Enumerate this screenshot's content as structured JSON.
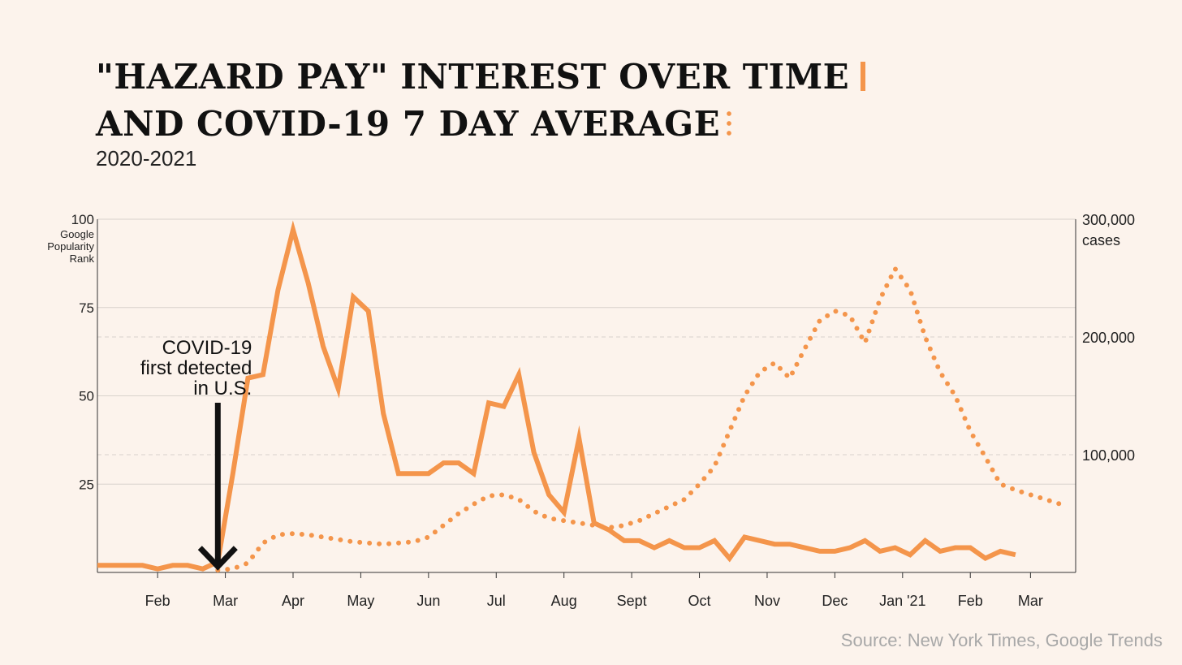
{
  "title_line1": "\"Hazard Pay\" Interest Over Time",
  "title_line2": "and COVID-19 7 Day Average",
  "subtitle": "2020-2021",
  "source": "Source: New York Times, Google Trends",
  "colors": {
    "accent": "#f4954b",
    "background": "#fcf3ec",
    "text": "#111111",
    "grid": "#d8d2cc",
    "source": "#a8a8a8"
  },
  "chart_data": {
    "type": "line",
    "x_unit": "week",
    "x": [
      0,
      1,
      2,
      3,
      4,
      5,
      6,
      7,
      8,
      9,
      10,
      11,
      12,
      13,
      14,
      15,
      16,
      17,
      18,
      19,
      20,
      21,
      22,
      23,
      24,
      25,
      26,
      27,
      28,
      29,
      30,
      31,
      32,
      33,
      34,
      35,
      36,
      37,
      38,
      39,
      40,
      41,
      42,
      43,
      44,
      45,
      46,
      47,
      48,
      49,
      50,
      51,
      52,
      53,
      54,
      55,
      56,
      57,
      58,
      59,
      60,
      61,
      62,
      63,
      64
    ],
    "x_ticks": [
      {
        "label": "Feb",
        "x": 4
      },
      {
        "label": "Mar",
        "x": 8.5
      },
      {
        "label": "Apr",
        "x": 13
      },
      {
        "label": "May",
        "x": 17.5
      },
      {
        "label": "Jun",
        "x": 22
      },
      {
        "label": "Jul",
        "x": 26.5
      },
      {
        "label": "Aug",
        "x": 31
      },
      {
        "label": "Sept",
        "x": 35.5
      },
      {
        "label": "Oct",
        "x": 40
      },
      {
        "label": "Nov",
        "x": 44.5
      },
      {
        "label": "Dec",
        "x": 49
      },
      {
        "label": "Jan '21",
        "x": 53.5
      },
      {
        "label": "Feb",
        "x": 58
      },
      {
        "label": "Mar",
        "x": 62
      }
    ],
    "xlim": [
      0,
      65
    ],
    "y_left": {
      "label_lines": [
        "Google",
        "Popularity",
        "Rank"
      ],
      "ylim": [
        0,
        100
      ],
      "ticks": [
        25,
        50,
        75,
        100
      ]
    },
    "y_right": {
      "label": "cases",
      "ylim": [
        0,
        300000
      ],
      "ticks": [
        100000,
        200000,
        300000
      ],
      "tick_labels": [
        "100,000",
        "200,000",
        "300,000"
      ]
    },
    "series": [
      {
        "axis": "left",
        "style": "solid",
        "values": [
          2,
          2,
          2,
          2,
          1,
          2,
          2,
          1,
          3,
          28,
          55,
          56,
          80,
          97,
          82,
          64,
          52,
          78,
          74,
          45,
          28,
          28,
          28,
          31,
          31,
          28,
          48,
          47,
          56,
          34,
          22,
          17,
          38,
          14,
          12,
          9,
          9,
          7,
          9,
          7,
          7,
          9,
          4,
          10,
          9,
          8,
          8,
          7,
          6,
          6,
          7,
          9,
          6,
          7,
          5,
          9,
          6,
          7,
          7,
          4,
          6,
          5,
          null,
          null,
          null
        ]
      },
      {
        "axis": "right",
        "style": "dotted",
        "values": [
          null,
          null,
          null,
          null,
          null,
          null,
          null,
          null,
          2000,
          3000,
          8000,
          25000,
          32000,
          33000,
          32000,
          30000,
          28000,
          26000,
          25000,
          24000,
          25000,
          26000,
          30000,
          40000,
          50000,
          58000,
          65000,
          66000,
          62000,
          52000,
          46000,
          44000,
          42000,
          40000,
          38000,
          40000,
          44000,
          50000,
          56000,
          62000,
          75000,
          90000,
          120000,
          150000,
          170000,
          178000,
          165000,
          190000,
          214000,
          222000,
          218000,
          195000,
          232000,
          258000,
          240000,
          200000,
          170000,
          150000,
          120000,
          98000,
          75000,
          70000,
          66000,
          62000,
          58000
        ]
      }
    ],
    "annotation": {
      "text_lines": [
        "COVID-19",
        "first detected",
        "in U.S."
      ],
      "x": 8,
      "arrow_to_y": 1
    }
  }
}
